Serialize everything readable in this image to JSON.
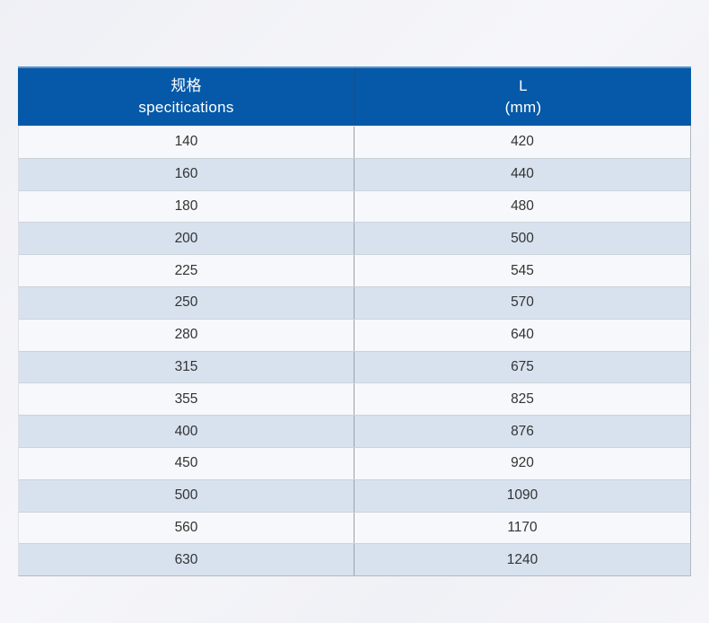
{
  "colors": {
    "header_bg": "#0659a8",
    "header_text": "#ffffff",
    "row_light": "#f7f8fb",
    "row_blue": "#d8e2ef",
    "cell_text": "#333333",
    "column_divider": "#9aa0ab",
    "row_divider": "#ccd2da",
    "page_background": "#f2f3f8"
  },
  "table": {
    "header": {
      "spec_cn": "规格",
      "spec_en": "specitications",
      "length_symbol": "L",
      "length_unit": "(mm)"
    }
  },
  "chart_data": {
    "type": "table",
    "columns": [
      "规格 specitications",
      "L (mm)"
    ],
    "rows": [
      [
        "140",
        "420"
      ],
      [
        "160",
        "440"
      ],
      [
        "180",
        "480"
      ],
      [
        "200",
        "500"
      ],
      [
        "225",
        "545"
      ],
      [
        "250",
        "570"
      ],
      [
        "280",
        "640"
      ],
      [
        "315",
        "675"
      ],
      [
        "355",
        "825"
      ],
      [
        "400",
        "876"
      ],
      [
        "450",
        "920"
      ],
      [
        "500",
        "1090"
      ],
      [
        "560",
        "1170"
      ],
      [
        "630",
        "1240"
      ]
    ]
  }
}
